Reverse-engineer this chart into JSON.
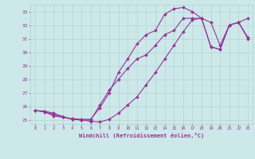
{
  "xlabel": "Windchill (Refroidissement éolien,°C)",
  "bg_color": "#cce8e8",
  "line_color": "#993399",
  "marker": "D",
  "markersize": 2.0,
  "linewidth": 0.8,
  "xlim": [
    -0.5,
    23.5
  ],
  "ylim": [
    24.7,
    33.5
  ],
  "xticks": [
    0,
    1,
    2,
    3,
    4,
    5,
    6,
    7,
    8,
    9,
    10,
    11,
    12,
    13,
    14,
    15,
    16,
    17,
    18,
    19,
    20,
    21,
    22,
    23
  ],
  "yticks": [
    25,
    26,
    27,
    28,
    29,
    30,
    31,
    32,
    33
  ],
  "grid_color": "#b0d0d0",
  "line1_x": [
    0,
    1,
    2,
    3,
    4,
    5,
    6,
    7,
    8,
    9,
    10,
    11,
    12,
    13,
    14,
    15,
    16,
    17,
    18,
    19,
    20,
    21,
    22,
    23
  ],
  "line1_y": [
    25.7,
    25.65,
    25.5,
    25.25,
    25.05,
    25.0,
    24.9,
    24.85,
    25.05,
    25.5,
    26.1,
    26.7,
    27.6,
    28.5,
    29.5,
    30.5,
    31.5,
    32.4,
    32.5,
    32.2,
    30.5,
    32.0,
    32.2,
    31.0
  ],
  "line2_x": [
    0,
    1,
    2,
    3,
    4,
    5,
    6,
    7,
    8,
    9,
    10,
    11,
    12,
    13,
    14,
    15,
    16,
    17,
    18,
    19,
    20,
    21,
    22,
    23
  ],
  "line2_y": [
    25.7,
    25.6,
    25.3,
    25.2,
    25.1,
    25.05,
    25.05,
    25.9,
    27.0,
    28.5,
    29.5,
    30.6,
    31.3,
    31.6,
    32.8,
    33.2,
    33.3,
    33.0,
    32.5,
    30.4,
    30.2,
    32.0,
    32.2,
    32.5
  ],
  "line3_x": [
    0,
    1,
    2,
    3,
    4,
    5,
    6,
    7,
    8,
    9,
    10,
    11,
    12,
    13,
    14,
    15,
    16,
    17,
    18,
    19,
    20,
    21,
    22,
    23
  ],
  "line3_y": [
    25.7,
    25.6,
    25.4,
    25.2,
    25.05,
    25.0,
    25.0,
    26.1,
    27.2,
    28.0,
    28.8,
    29.5,
    29.8,
    30.5,
    31.3,
    31.6,
    32.5,
    32.5,
    32.5,
    30.4,
    30.2,
    32.0,
    32.2,
    31.1
  ]
}
